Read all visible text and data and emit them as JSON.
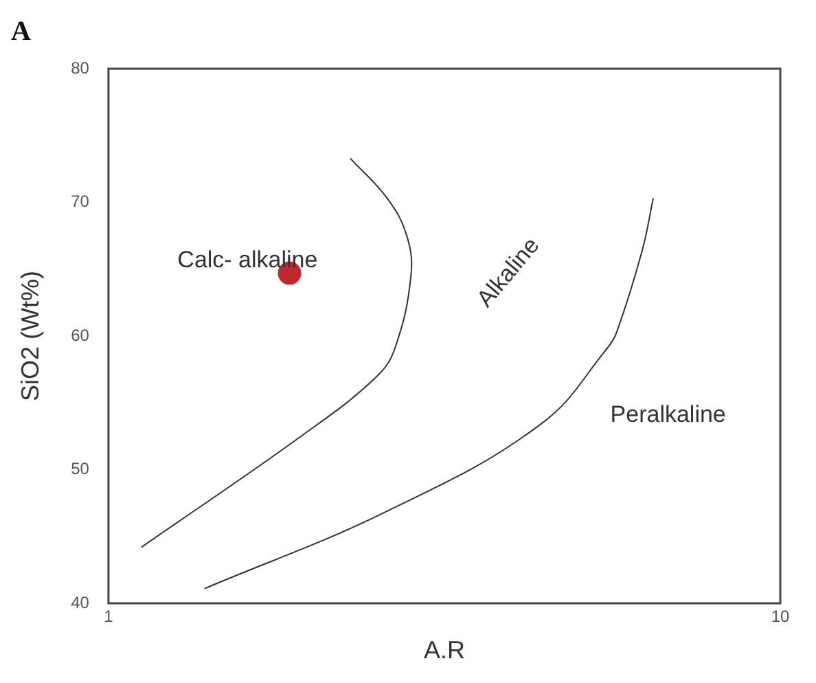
{
  "chart_data": {
    "type": "line",
    "title": "A",
    "xlabel": "A.R",
    "ylabel": "SiO2 (Wt%)",
    "log": "x",
    "xlim": [
      1,
      10
    ],
    "xticks": [
      1,
      10
    ],
    "ylim": [
      40,
      80
    ],
    "yticks": [
      40,
      50,
      60,
      70,
      80
    ],
    "grid": false,
    "legend": false,
    "marker": "none",
    "line_style": "solid",
    "series": [
      {
        "color": "#333333",
        "x": [
          1.12,
          1.96,
          2.5,
          2.67,
          2.82,
          2.78,
          2.6,
          2.29
        ],
        "values": [
          44.2,
          52.7,
          56.9,
          59.1,
          64.5,
          67.5,
          70.3,
          73.3
        ]
      },
      {
        "color": "#333333",
        "x": [
          1.39,
          2.6,
          4.4,
          5.53,
          5.71,
          6.23,
          6.47
        ],
        "values": [
          41.1,
          46.9,
          53.4,
          59.1,
          60.3,
          66.4,
          70.3
        ]
      },
      {
        "type": "scatter",
        "color": "#c0282d",
        "marker": "circle",
        "x": [
          1.86
        ],
        "values": [
          64.7
        ]
      }
    ],
    "annotations": [
      "Calc- alkaline",
      "Alkaline",
      "Peralkaline"
    ]
  }
}
